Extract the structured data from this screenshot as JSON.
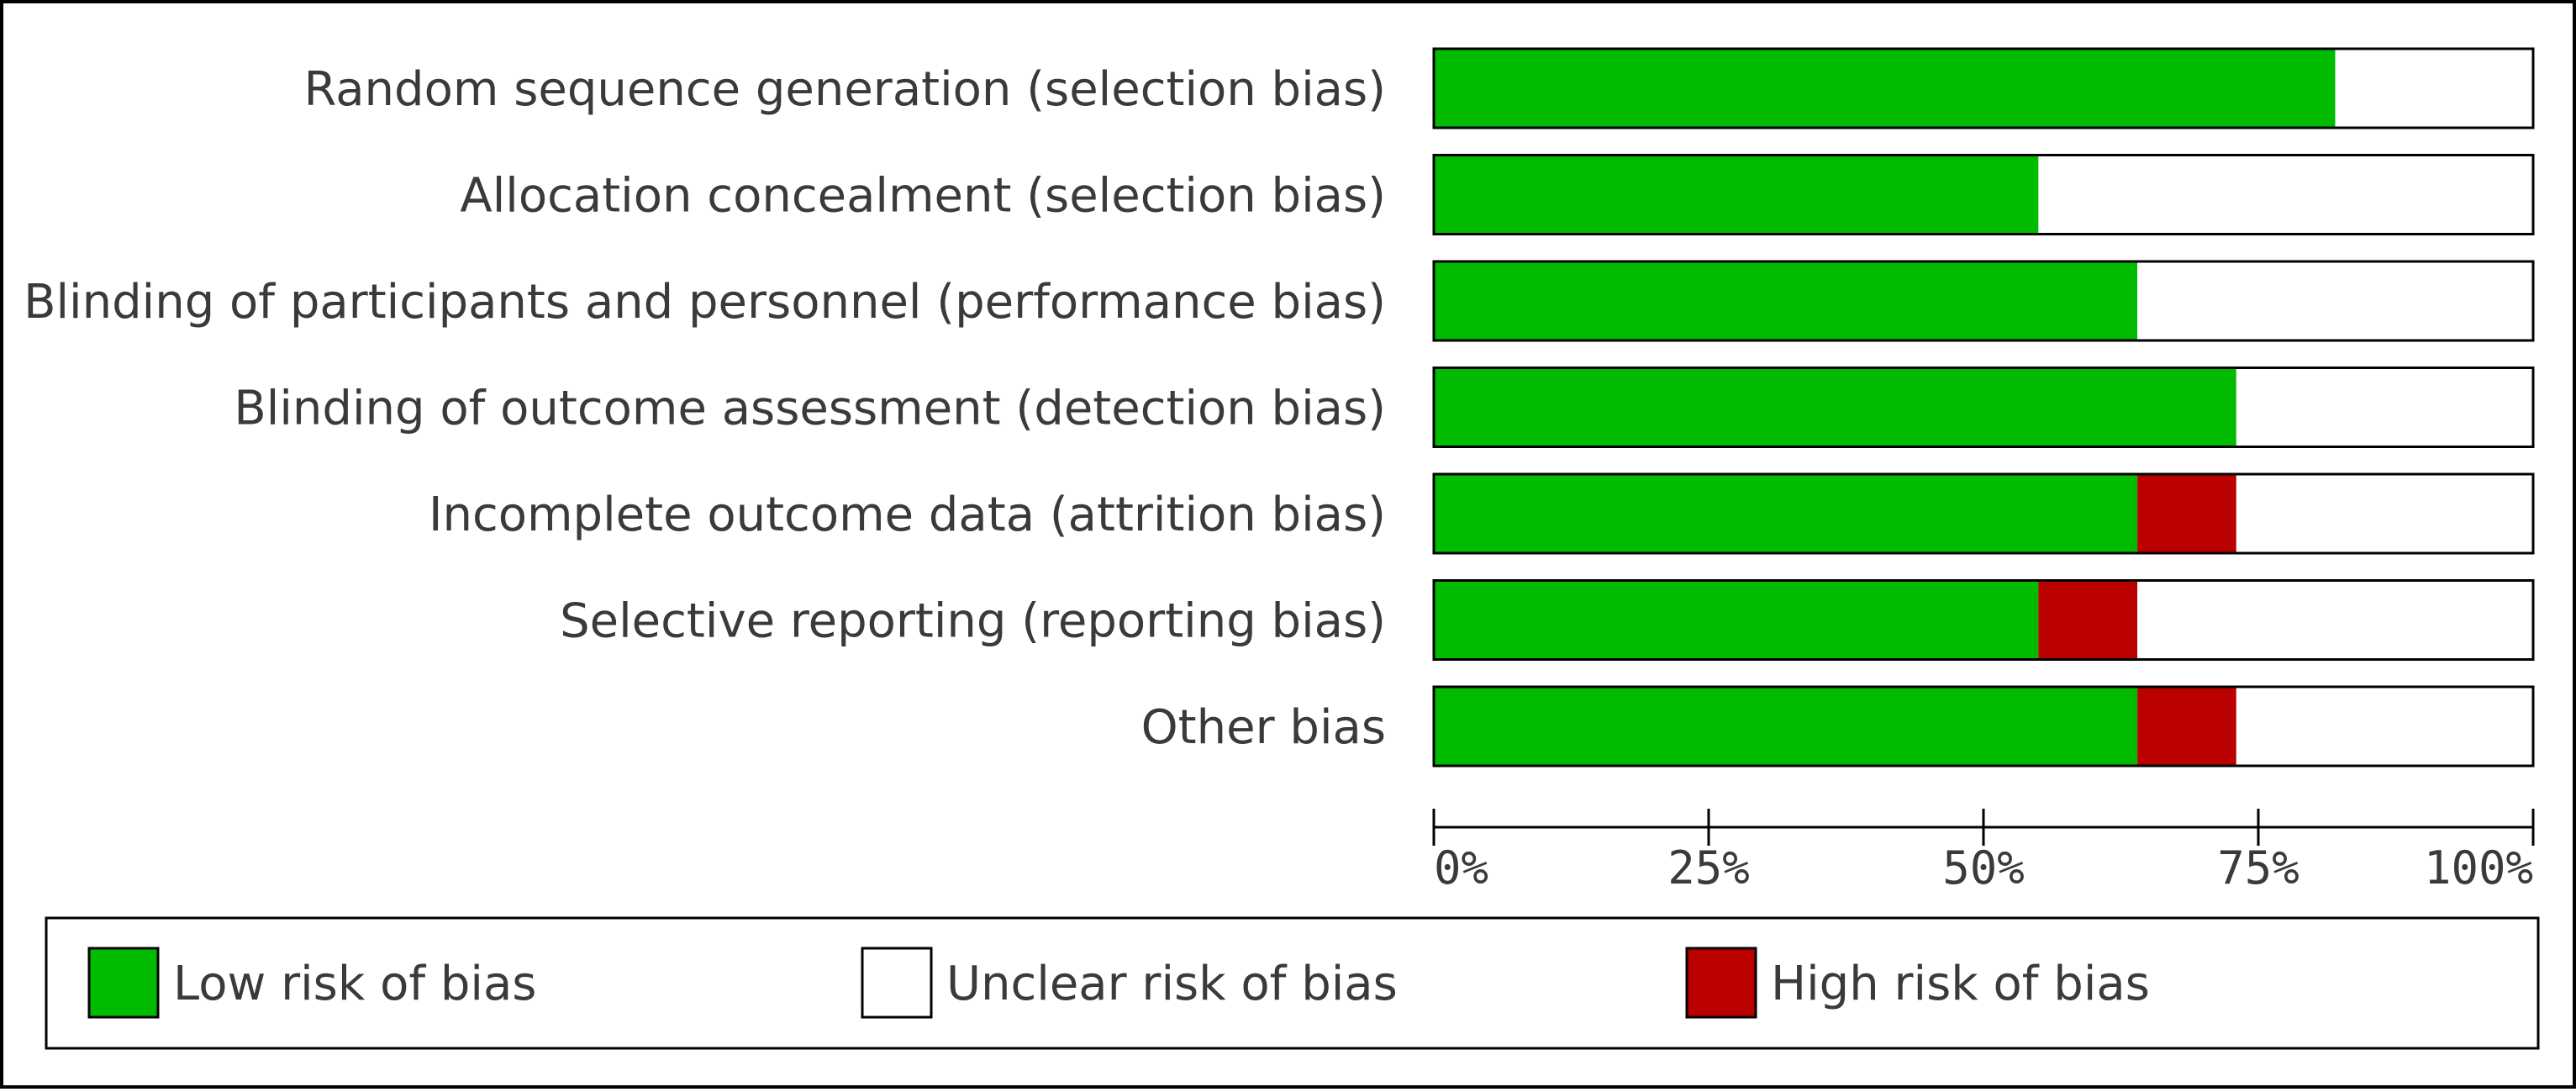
{
  "chart_data": {
    "type": "bar",
    "orientation": "horizontal",
    "stacked": true,
    "categories": [
      "Random sequence generation (selection bias)",
      "Allocation concealment (selection bias)",
      "Blinding of participants and personnel (performance bias)",
      "Blinding of outcome assessment (detection bias)",
      "Incomplete outcome data (attrition bias)",
      "Selective reporting (reporting bias)",
      "Other bias"
    ],
    "series": [
      {
        "name": "Low risk of bias",
        "color": "#00bb00",
        "values": [
          82,
          55,
          64,
          73,
          64,
          55,
          64
        ]
      },
      {
        "name": "Unclear risk of bias",
        "color": "#ffffff",
        "values": [
          18,
          45,
          36,
          27,
          27,
          36,
          27
        ]
      },
      {
        "name": "High risk of bias",
        "color": "#bb0000",
        "values": [
          0,
          0,
          0,
          0,
          9,
          9,
          9
        ]
      }
    ],
    "xlim": [
      0,
      100
    ],
    "x_ticks": [
      "0%",
      "25%",
      "50%",
      "75%",
      "100%"
    ],
    "legend_position": "bottom",
    "grid": false
  }
}
